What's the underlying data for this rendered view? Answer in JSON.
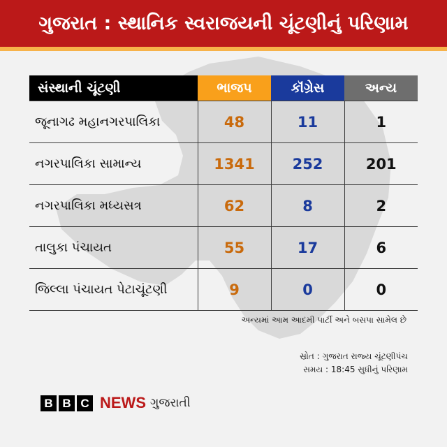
{
  "header": {
    "title": "ગુજરાત : સ્થાનિક સ્વરાજયની ચૂંટણીનું પરિણામ"
  },
  "colors": {
    "header_red": "#bb1919",
    "stripe": "#f7b24a",
    "bjp": "#f9a01b",
    "bjp_text": "#c96a0c",
    "inc": "#1a3a9c",
    "others": "#6e6e6e"
  },
  "table": {
    "columns": [
      "સંસ્થાની ચૂંટણી",
      "ભાજપ",
      "કૉંગ્રેસ",
      "અન્ય"
    ],
    "rows": [
      {
        "name": "જૂનાગઢ મહાનગરપાલિકા",
        "bjp": "48",
        "inc": "11",
        "others": "1"
      },
      {
        "name": "નગરપાલિકા સામાન્ય",
        "bjp": "1341",
        "inc": "252",
        "others": "201"
      },
      {
        "name": "નગરપાલિકા મધ્યસત્ર",
        "bjp": "62",
        "inc": "8",
        "others": "2"
      },
      {
        "name": "તાલુકા પંચાયત",
        "bjp": "55",
        "inc": "17",
        "others": "6"
      },
      {
        "name": "જિલ્લા પંચાયત પેટાચૂંટણી",
        "bjp": "9",
        "inc": "0",
        "others": "0"
      }
    ]
  },
  "chart_data": {
    "type": "table",
    "title": "ગુજરાત : સ્થાનિક સ્વરાજયની ચૂંટણીનું પરિણામ",
    "columns": [
      "સંસ્થાની ચૂંટણી",
      "ભાજપ",
      "કૉંગ્રેસ",
      "અન્ય"
    ],
    "categories": [
      "જૂનાગઢ મહાનગરપાલિકા",
      "નગરપાલિકા સામાન્ય",
      "નગરપાલિકા મધ્યસત્ર",
      "તાલુકા પંચાયત",
      "જિલ્લા પંચાયત પેટાચૂંટણી"
    ],
    "series": [
      {
        "name": "ભાજપ",
        "values": [
          48,
          1341,
          62,
          55,
          9
        ]
      },
      {
        "name": "કૉંગ્રેસ",
        "values": [
          11,
          252,
          8,
          17,
          0
        ]
      },
      {
        "name": "અન્ય",
        "values": [
          1,
          201,
          2,
          6,
          0
        ]
      }
    ]
  },
  "footnote": "અન્યમાં આમ આદમી પાર્ટી અને બસપા સામેલ છે",
  "source": "સ્રોત : ગુજરાત રાજ્ય ચૂંટણીપંચ",
  "time": "સમય : 18:45 સુધીનું પરિણામ",
  "logo": {
    "letters": [
      "B",
      "B",
      "C"
    ],
    "news": "NEWS",
    "language": "ગુજરાતી",
    "icon": "bbc-news-logo"
  }
}
